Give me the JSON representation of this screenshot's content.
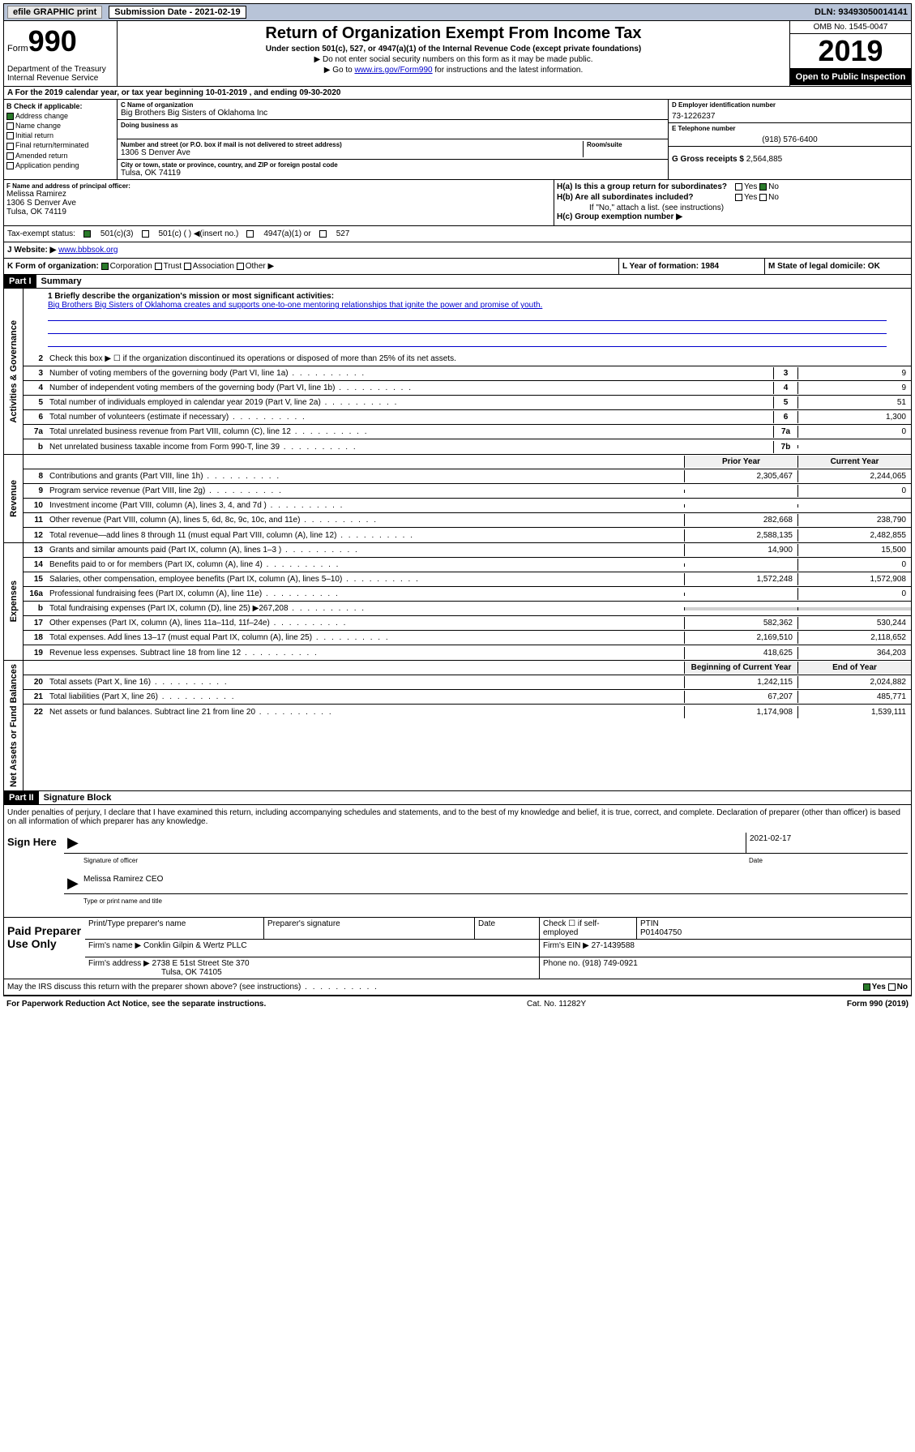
{
  "topbar": {
    "efile": "efile GRAPHIC print",
    "submission": "Submission Date - 2021-02-19",
    "dln": "DLN: 93493050014141"
  },
  "header": {
    "form_prefix": "Form",
    "form_num": "990",
    "dept": "Department of the Treasury\nInternal Revenue Service",
    "title": "Return of Organization Exempt From Income Tax",
    "subtitle": "Under section 501(c), 527, or 4947(a)(1) of the Internal Revenue Code (except private foundations)",
    "note1": "▶ Do not enter social security numbers on this form as it may be made public.",
    "note2_pre": "▶ Go to ",
    "note2_link": "www.irs.gov/Form990",
    "note2_post": " for instructions and the latest information.",
    "omb": "OMB No. 1545-0047",
    "year": "2019",
    "open": "Open to Public Inspection"
  },
  "row_a": "A For the 2019 calendar year, or tax year beginning 10-01-2019    , and ending 09-30-2020",
  "col_b": {
    "header": "B Check if applicable:",
    "items": [
      "Address change",
      "Name change",
      "Initial return",
      "Final return/terminated",
      "Amended return",
      "Application pending"
    ],
    "checked_idx": 0
  },
  "col_c": {
    "name_lbl": "C Name of organization",
    "name": "Big Brothers Big Sisters of Oklahoma Inc",
    "dba_lbl": "Doing business as",
    "dba": "",
    "addr_lbl": "Number and street (or P.O. box if mail is not delivered to street address)",
    "room_lbl": "Room/suite",
    "addr": "1306 S Denver Ave",
    "city_lbl": "City or town, state or province, country, and ZIP or foreign postal code",
    "city": "Tulsa, OK  74119"
  },
  "col_d": {
    "ein_lbl": "D Employer identification number",
    "ein": "73-1226237",
    "phone_lbl": "E Telephone number",
    "phone": "(918) 576-6400",
    "gross_lbl": "G Gross receipts $",
    "gross": "2,564,885"
  },
  "section_f": {
    "lbl": "F  Name and address of principal officer:",
    "name": "Melissa Ramirez",
    "addr": "1306 S Denver Ave",
    "city": "Tulsa, OK  74119"
  },
  "section_h": {
    "ha_lbl": "H(a)  Is this a group return for subordinates?",
    "hb_lbl": "H(b)  Are all subordinates included?",
    "hb_note": "If \"No,\" attach a list. (see instructions)",
    "hc_lbl": "H(c)  Group exemption number ▶",
    "yes": "Yes",
    "no": "No"
  },
  "tax_status": {
    "lbl": "Tax-exempt status:",
    "opt1": "501(c)(3)",
    "opt2": "501(c) (  ) ◀(insert no.)",
    "opt3": "4947(a)(1) or",
    "opt4": "527"
  },
  "row_j": {
    "lbl": "J    Website: ▶",
    "url": "www.bbbsok.org"
  },
  "row_k": {
    "lbl": "K Form of organization:",
    "opts": [
      "Corporation",
      "Trust",
      "Association",
      "Other ▶"
    ]
  },
  "row_l": "L Year of formation: 1984",
  "row_m": "M State of legal domicile: OK",
  "part1": {
    "hdr": "Part I",
    "title": "Summary"
  },
  "mission": {
    "lbl": "1  Briefly describe the organization's mission or most significant activities:",
    "text": "Big Brothers Big Sisters of Oklahoma creates and supports one-to-one mentoring relationships that ignite the power and promise of youth."
  },
  "gov_lines": [
    {
      "num": "2",
      "desc": "Check this box ▶ ☐ if the organization discontinued its operations or disposed of more than 25% of its net assets."
    },
    {
      "num": "3",
      "desc": "Number of voting members of the governing body (Part VI, line 1a)",
      "box": "3",
      "val": "9"
    },
    {
      "num": "4",
      "desc": "Number of independent voting members of the governing body (Part VI, line 1b)",
      "box": "4",
      "val": "9"
    },
    {
      "num": "5",
      "desc": "Total number of individuals employed in calendar year 2019 (Part V, line 2a)",
      "box": "5",
      "val": "51"
    },
    {
      "num": "6",
      "desc": "Total number of volunteers (estimate if necessary)",
      "box": "6",
      "val": "1,300"
    },
    {
      "num": "7a",
      "desc": "Total unrelated business revenue from Part VIII, column (C), line 12",
      "box": "7a",
      "val": "0"
    },
    {
      "num": "b",
      "desc": "Net unrelated business taxable income from Form 990-T, line 39",
      "box": "7b",
      "val": ""
    }
  ],
  "rev_hdr": {
    "prior": "Prior Year",
    "current": "Current Year"
  },
  "rev_lines": [
    {
      "num": "8",
      "desc": "Contributions and grants (Part VIII, line 1h)",
      "prior": "2,305,467",
      "current": "2,244,065"
    },
    {
      "num": "9",
      "desc": "Program service revenue (Part VIII, line 2g)",
      "prior": "",
      "current": "0"
    },
    {
      "num": "10",
      "desc": "Investment income (Part VIII, column (A), lines 3, 4, and 7d )",
      "prior": "",
      "current": ""
    },
    {
      "num": "11",
      "desc": "Other revenue (Part VIII, column (A), lines 5, 6d, 8c, 9c, 10c, and 11e)",
      "prior": "282,668",
      "current": "238,790"
    },
    {
      "num": "12",
      "desc": "Total revenue—add lines 8 through 11 (must equal Part VIII, column (A), line 12)",
      "prior": "2,588,135",
      "current": "2,482,855"
    }
  ],
  "exp_lines": [
    {
      "num": "13",
      "desc": "Grants and similar amounts paid (Part IX, column (A), lines 1–3 )",
      "prior": "14,900",
      "current": "15,500"
    },
    {
      "num": "14",
      "desc": "Benefits paid to or for members (Part IX, column (A), line 4)",
      "prior": "",
      "current": "0"
    },
    {
      "num": "15",
      "desc": "Salaries, other compensation, employee benefits (Part IX, column (A), lines 5–10)",
      "prior": "1,572,248",
      "current": "1,572,908"
    },
    {
      "num": "16a",
      "desc": "Professional fundraising fees (Part IX, column (A), line 11e)",
      "prior": "",
      "current": "0"
    },
    {
      "num": "b",
      "desc": "Total fundraising expenses (Part IX, column (D), line 25) ▶267,208",
      "prior": "shaded",
      "current": "shaded"
    },
    {
      "num": "17",
      "desc": "Other expenses (Part IX, column (A), lines 11a–11d, 11f–24e)",
      "prior": "582,362",
      "current": "530,244"
    },
    {
      "num": "18",
      "desc": "Total expenses. Add lines 13–17 (must equal Part IX, column (A), line 25)",
      "prior": "2,169,510",
      "current": "2,118,652"
    },
    {
      "num": "19",
      "desc": "Revenue less expenses. Subtract line 18 from line 12",
      "prior": "418,625",
      "current": "364,203"
    }
  ],
  "net_hdr": {
    "prior": "Beginning of Current Year",
    "current": "End of Year"
  },
  "net_lines": [
    {
      "num": "20",
      "desc": "Total assets (Part X, line 16)",
      "prior": "1,242,115",
      "current": "2,024,882"
    },
    {
      "num": "21",
      "desc": "Total liabilities (Part X, line 26)",
      "prior": "67,207",
      "current": "485,771"
    },
    {
      "num": "22",
      "desc": "Net assets or fund balances. Subtract line 21 from line 20",
      "prior": "1,174,908",
      "current": "1,539,111"
    }
  ],
  "part2": {
    "hdr": "Part II",
    "title": "Signature Block"
  },
  "sig": {
    "text": "Under penalties of perjury, I declare that I have examined this return, including accompanying schedules and statements, and to the best of my knowledge and belief, it is true, correct, and complete. Declaration of preparer (other than officer) is based on all information of which preparer has any knowledge.",
    "here": "Sign Here",
    "officer_lbl": "Signature of officer",
    "date": "2021-02-17",
    "date_lbl": "Date",
    "name": "Melissa Ramirez CEO",
    "name_lbl": "Type or print name and title"
  },
  "prep": {
    "lbl": "Paid Preparer Use Only",
    "h1": "Print/Type preparer's name",
    "h2": "Preparer's signature",
    "h3": "Date",
    "h4_pre": "Check ☐ if self-employed",
    "h5": "PTIN",
    "ptin": "P01404750",
    "firm_lbl": "Firm's name    ▶",
    "firm": "Conklin Gilpin & Wertz PLLC",
    "ein_lbl": "Firm's EIN ▶",
    "ein": "27-1439588",
    "addr_lbl": "Firm's address ▶",
    "addr": "2738 E 51st Street Ste 370",
    "addr2": "Tulsa, OK  74105",
    "phone_lbl": "Phone no.",
    "phone": "(918) 749-0921"
  },
  "discuss": {
    "text": "May the IRS discuss this return with the preparer shown above? (see instructions)",
    "yes": "Yes",
    "no": "No"
  },
  "footer": {
    "left": "For Paperwork Reduction Act Notice, see the separate instructions.",
    "center": "Cat. No. 11282Y",
    "right": "Form 990 (2019)"
  },
  "vlabels": {
    "gov": "Activities & Governance",
    "rev": "Revenue",
    "exp": "Expenses",
    "net": "Net Assets or Fund Balances"
  }
}
